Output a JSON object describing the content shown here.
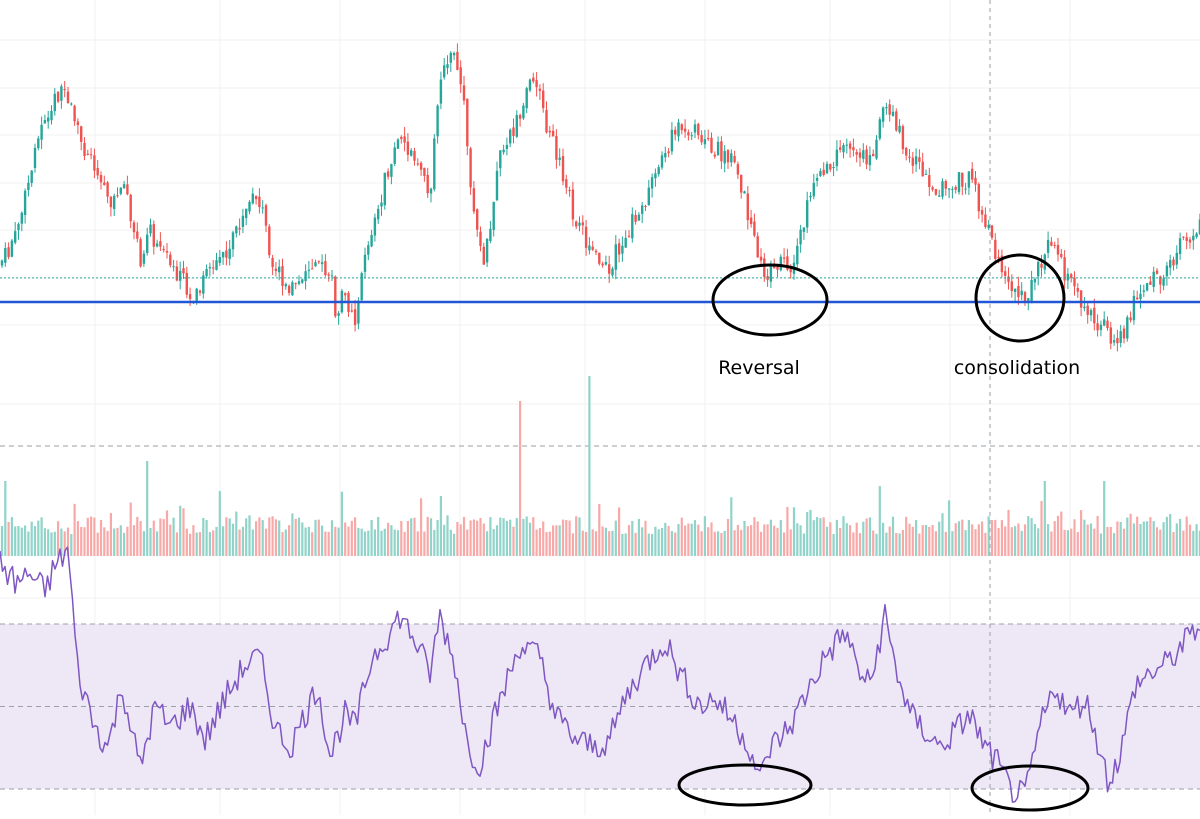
{
  "annotations": {
    "reversal": "Reversal",
    "consolidation": "consolidation"
  },
  "colors": {
    "up": "#26a69a",
    "down": "#ef5350",
    "vol_up": "#8fd3c9",
    "vol_down": "#f7a9a7",
    "support_line": "#2156d6",
    "rsi_line": "#7e57c2",
    "rsi_band": "#ede7f6",
    "grid": "#f0f1f3",
    "guide": "#9aa0a6",
    "annotation": "#000000"
  },
  "chart_data": [
    {
      "type": "candlestick",
      "ylim": [
        0,
        100
      ],
      "support_level": 18.5,
      "reference_level": 23.5,
      "keypoints": [
        [
          0,
          28
        ],
        [
          10,
          35
        ],
        [
          25,
          52
        ],
        [
          35,
          72
        ],
        [
          55,
          88
        ],
        [
          65,
          92
        ],
        [
          80,
          75
        ],
        [
          95,
          62
        ],
        [
          110,
          50
        ],
        [
          125,
          58
        ],
        [
          140,
          30
        ],
        [
          150,
          40
        ],
        [
          165,
          30
        ],
        [
          180,
          25
        ],
        [
          195,
          15
        ],
        [
          210,
          28
        ],
        [
          230,
          35
        ],
        [
          250,
          55
        ],
        [
          265,
          48
        ],
        [
          270,
          30
        ],
        [
          290,
          20
        ],
        [
          310,
          25
        ],
        [
          330,
          28
        ],
        [
          335,
          12
        ],
        [
          345,
          18
        ],
        [
          355,
          5
        ],
        [
          360,
          25
        ],
        [
          370,
          35
        ],
        [
          385,
          60
        ],
        [
          400,
          75
        ],
        [
          415,
          68
        ],
        [
          430,
          55
        ],
        [
          440,
          95
        ],
        [
          455,
          108
        ],
        [
          465,
          85
        ],
        [
          475,
          40
        ],
        [
          485,
          30
        ],
        [
          500,
          70
        ],
        [
          515,
          78
        ],
        [
          530,
          98
        ],
        [
          540,
          88
        ],
        [
          550,
          75
        ],
        [
          565,
          60
        ],
        [
          575,
          45
        ],
        [
          585,
          38
        ],
        [
          595,
          30
        ],
        [
          610,
          28
        ],
        [
          625,
          40
        ],
        [
          645,
          50
        ],
        [
          660,
          65
        ],
        [
          680,
          80
        ],
        [
          700,
          75
        ],
        [
          715,
          70
        ],
        [
          730,
          68
        ],
        [
          740,
          58
        ],
        [
          755,
          38
        ],
        [
          765,
          20
        ],
        [
          775,
          30
        ],
        [
          790,
          28
        ],
        [
          800,
          38
        ],
        [
          810,
          55
        ],
        [
          825,
          62
        ],
        [
          840,
          70
        ],
        [
          855,
          72
        ],
        [
          870,
          65
        ],
        [
          885,
          88
        ],
        [
          895,
          80
        ],
        [
          910,
          68
        ],
        [
          925,
          62
        ],
        [
          940,
          55
        ],
        [
          955,
          58
        ],
        [
          970,
          60
        ],
        [
          985,
          45
        ],
        [
          995,
          32
        ],
        [
          1010,
          22
        ],
        [
          1025,
          18
        ],
        [
          1035,
          22
        ],
        [
          1045,
          35
        ],
        [
          1055,
          32
        ],
        [
          1065,
          25
        ],
        [
          1075,
          18
        ],
        [
          1090,
          10
        ],
        [
          1105,
          5
        ],
        [
          1115,
          0
        ],
        [
          1125,
          5
        ],
        [
          1135,
          15
        ],
        [
          1150,
          22
        ],
        [
          1165,
          25
        ],
        [
          1180,
          35
        ],
        [
          1200,
          42
        ]
      ]
    },
    {
      "type": "bar",
      "series": [
        {
          "values_hint": "volume"
        }
      ],
      "spikes": [
        [
          520,
          155
        ],
        [
          588,
          180
        ],
        [
          148,
          95
        ],
        [
          5,
          75
        ],
        [
          220,
          65
        ],
        [
          440,
          60
        ],
        [
          880,
          70
        ],
        [
          1045,
          75
        ],
        [
          1105,
          75
        ]
      ]
    },
    {
      "type": "line",
      "ylim": [
        0,
        100
      ],
      "levels": [
        70,
        50,
        30
      ],
      "keypoints": [
        [
          0,
          85
        ],
        [
          15,
          80
        ],
        [
          30,
          82
        ],
        [
          45,
          78
        ],
        [
          55,
          84
        ],
        [
          68,
          88
        ],
        [
          78,
          58
        ],
        [
          95,
          45
        ],
        [
          108,
          40
        ],
        [
          122,
          55
        ],
        [
          140,
          35
        ],
        [
          155,
          50
        ],
        [
          170,
          45
        ],
        [
          190,
          50
        ],
        [
          205,
          42
        ],
        [
          225,
          52
        ],
        [
          245,
          60
        ],
        [
          260,
          62
        ],
        [
          275,
          45
        ],
        [
          290,
          40
        ],
        [
          305,
          48
        ],
        [
          318,
          55
        ],
        [
          330,
          38
        ],
        [
          345,
          48
        ],
        [
          355,
          45
        ],
        [
          372,
          62
        ],
        [
          390,
          68
        ],
        [
          400,
          72
        ],
        [
          415,
          66
        ],
        [
          430,
          58
        ],
        [
          440,
          72
        ],
        [
          455,
          60
        ],
        [
          468,
          40
        ],
        [
          480,
          36
        ],
        [
          495,
          48
        ],
        [
          520,
          65
        ],
        [
          540,
          62
        ],
        [
          555,
          48
        ],
        [
          575,
          42
        ],
        [
          595,
          40
        ],
        [
          610,
          42
        ],
        [
          625,
          52
        ],
        [
          645,
          60
        ],
        [
          665,
          66
        ],
        [
          680,
          58
        ],
        [
          700,
          50
        ],
        [
          715,
          52
        ],
        [
          735,
          46
        ],
        [
          750,
          40
        ],
        [
          760,
          32
        ],
        [
          770,
          40
        ],
        [
          790,
          45
        ],
        [
          810,
          55
        ],
        [
          825,
          62
        ],
        [
          845,
          68
        ],
        [
          860,
          58
        ],
        [
          870,
          55
        ],
        [
          885,
          72
        ],
        [
          895,
          60
        ],
        [
          910,
          48
        ],
        [
          925,
          44
        ],
        [
          940,
          40
        ],
        [
          955,
          44
        ],
        [
          970,
          48
        ],
        [
          985,
          40
        ],
        [
          998,
          36
        ],
        [
          1010,
          30
        ],
        [
          1025,
          28
        ],
        [
          1040,
          45
        ],
        [
          1055,
          55
        ],
        [
          1070,
          48
        ],
        [
          1085,
          52
        ],
        [
          1095,
          44
        ],
        [
          1108,
          32
        ],
        [
          1120,
          38
        ],
        [
          1135,
          55
        ],
        [
          1150,
          58
        ],
        [
          1165,
          60
        ],
        [
          1180,
          64
        ],
        [
          1200,
          70
        ]
      ]
    }
  ]
}
